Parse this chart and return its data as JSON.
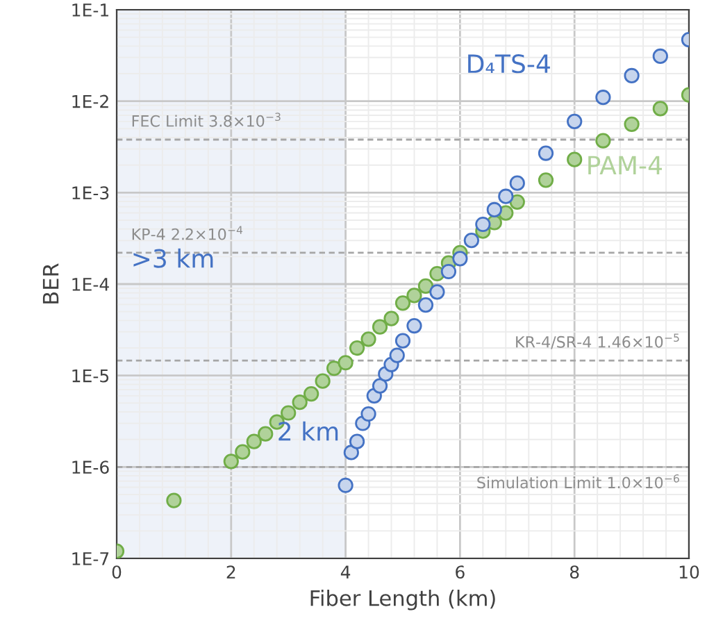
{
  "chart_data": {
    "type": "scatter",
    "xlabel": "Fiber Length (km)",
    "ylabel": "BER",
    "log": "y",
    "grid": true,
    "marker": "circle",
    "xlim": [
      0,
      10
    ],
    "xticks": [
      0,
      2,
      4,
      6,
      8,
      10
    ],
    "ylim": [
      1e-07,
      0.1
    ],
    "yticks": [
      {
        "value": 1e-07,
        "label": "1E-7"
      },
      {
        "value": 1e-06,
        "label": "1E-6"
      },
      {
        "value": 1e-05,
        "label": "1E-5"
      },
      {
        "value": 0.0001,
        "label": "1E-4"
      },
      {
        "value": 0.001,
        "label": "1E-3"
      },
      {
        "value": 0.01,
        "label": "1E-2"
      },
      {
        "value": 0.1,
        "label": "1E-1"
      }
    ],
    "series": [
      {
        "name": "D₄TS-4",
        "color": "#4472c4",
        "x": [
          4.0,
          4.1,
          4.2,
          4.3,
          4.4,
          4.5,
          4.6,
          4.7,
          4.8,
          4.9,
          5.0,
          5.2,
          5.4,
          5.6,
          5.8,
          6.0,
          6.2,
          6.4,
          6.6,
          6.8,
          7.0,
          7.5,
          8.0,
          8.5,
          9.0,
          9.5,
          10
        ],
        "values": [
          6.3e-07,
          1.44e-06,
          1.9e-06,
          3e-06,
          3.8e-06,
          6e-06,
          7.7e-06,
          1.04e-05,
          1.32e-05,
          1.66e-05,
          2.4e-05,
          3.5e-05,
          5.9e-05,
          8.2e-05,
          0.000137,
          0.00019,
          0.0003,
          0.00045,
          0.00065,
          0.00091,
          0.00127,
          0.0027,
          0.006,
          0.011,
          0.019,
          0.031,
          0.047
        ]
      },
      {
        "name": "PAM-4",
        "color": "#70ad47",
        "x": [
          0,
          1,
          2.0,
          2.2,
          2.4,
          2.6,
          2.8,
          3.0,
          3.2,
          3.4,
          3.6,
          3.8,
          4.0,
          4.2,
          4.4,
          4.6,
          4.8,
          5.0,
          5.2,
          5.4,
          5.6,
          5.8,
          6.0,
          6.4,
          6.6,
          6.8,
          7.0,
          7.5,
          8.0,
          8.5,
          9.0,
          9.5,
          10
        ],
        "values": [
          1.2e-07,
          4.3e-07,
          1.15e-06,
          1.46e-06,
          1.9e-06,
          2.3e-06,
          3.1e-06,
          3.9e-06,
          5.1e-06,
          6.3e-06,
          8.7e-06,
          1.2e-05,
          1.38e-05,
          2e-05,
          2.5e-05,
          3.4e-05,
          4.2e-05,
          6.2e-05,
          7.5e-05,
          9.5e-05,
          0.00013,
          0.00017,
          0.00022,
          0.00038,
          0.00047,
          0.0006,
          0.00079,
          0.00137,
          0.0023,
          0.0037,
          0.0056,
          0.0083,
          0.0117
        ]
      }
    ],
    "ref_lines": [
      {
        "axis": "y",
        "value": 0.0038,
        "label": "FEC Limit 3.8×10$^{−3}$",
        "color": "#a6a6a6",
        "line_style": "dashed"
      },
      {
        "axis": "y",
        "value": 0.00022,
        "label": "KP-4 2.2×10$^{−4}$",
        "color": "#a6a6a6",
        "line_style": "dashed"
      },
      {
        "axis": "y",
        "value": 1.46e-05,
        "label": "KR-4/SR-4 1.46×10$^{−5}$",
        "color": "#a6a6a6",
        "line_style": "dashed"
      },
      {
        "axis": "y",
        "value": 1e-06,
        "label": "Simulation Limit 1.0×10$^{−6}$",
        "color": "#a6a6a6",
        "line_style": "dashed"
      }
    ],
    "bands": [
      {
        "axis": "x",
        "from": 0,
        "to": 4,
        "color": "#eef2f9"
      }
    ],
    "annotations": [
      ">3 km",
      "2 km"
    ]
  }
}
